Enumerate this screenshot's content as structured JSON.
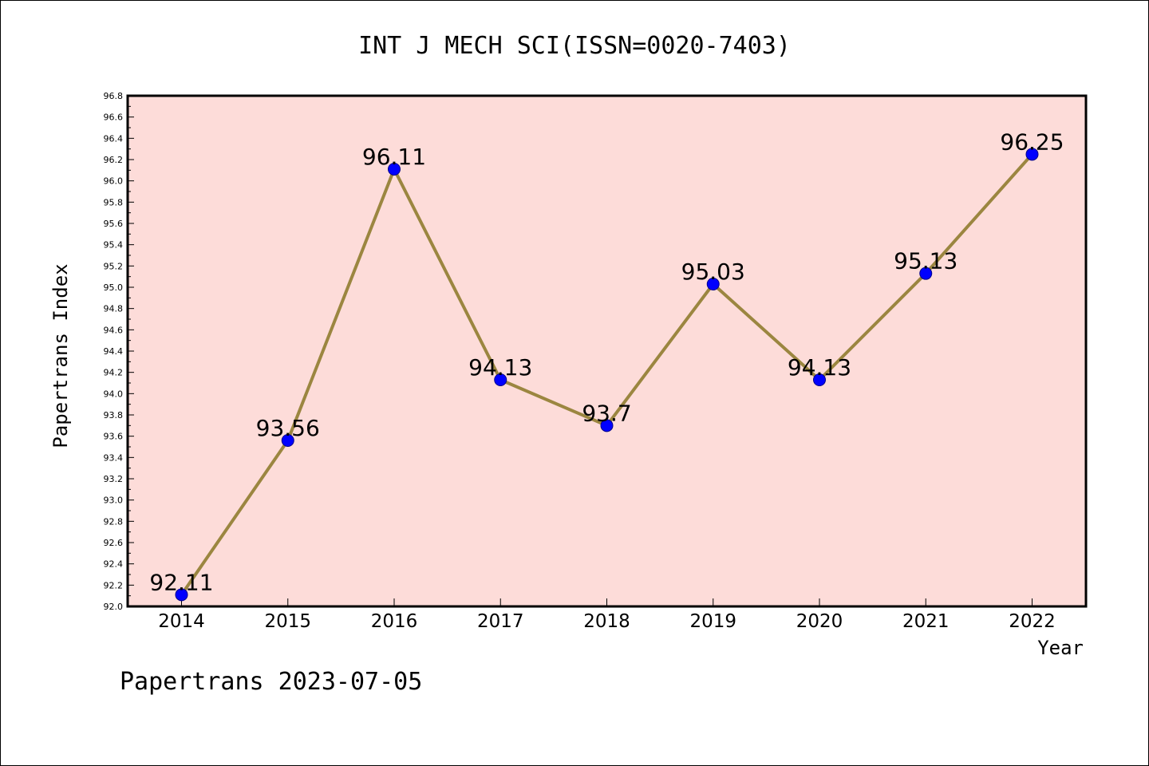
{
  "chart_data": {
    "type": "line",
    "title": "INT J MECH SCI(ISSN=0020-7403)",
    "xlabel": "Year",
    "ylabel": "Papertrans Index",
    "categories": [
      "2014",
      "2015",
      "2016",
      "2017",
      "2018",
      "2019",
      "2020",
      "2021",
      "2022"
    ],
    "series": [
      {
        "values": [
          92.11,
          93.56,
          96.11,
          94.13,
          93.7,
          95.03,
          94.13,
          95.13,
          96.25
        ],
        "labels": [
          "92.11",
          "93.56",
          "96.11",
          "94.13",
          "93.7",
          "95.03",
          "94.13",
          "95.13",
          "96.25"
        ]
      }
    ],
    "ylim": [
      92.0,
      96.8
    ],
    "yticks": [
      "92.0",
      "92.2",
      "92.4",
      "92.6",
      "92.8",
      "93.0",
      "93.2",
      "93.4",
      "93.6",
      "93.8",
      "94.0",
      "94.2",
      "94.4",
      "94.6",
      "94.8",
      "95.0",
      "95.2",
      "95.4",
      "95.6",
      "95.8",
      "96.0",
      "96.2",
      "96.4",
      "96.6",
      "96.8"
    ],
    "grid": false,
    "colors": {
      "plot_background": "#fddcd9",
      "line": "#9b8640",
      "marker": "#0000ff",
      "marker_edge": "#00008b"
    }
  },
  "footer": "Papertrans 2023-07-05"
}
